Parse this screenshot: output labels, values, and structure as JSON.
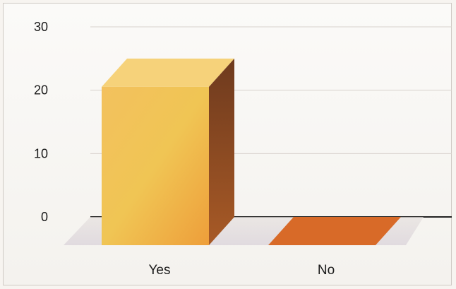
{
  "chart_data": {
    "type": "bar",
    "style": "3d",
    "categories": [
      "Yes",
      "No"
    ],
    "values": [
      25,
      0
    ],
    "ylim": [
      0,
      30
    ],
    "yticks": [
      0,
      10,
      20,
      30
    ],
    "grid": true,
    "legend": "none",
    "colors": {
      "yes_front": "#f2b24a",
      "yes_top": "#f6d27a",
      "yes_side": "#8a4a24",
      "no_face": "#d86a28",
      "axis": "#222222",
      "grid": "#d8d2cc"
    }
  }
}
